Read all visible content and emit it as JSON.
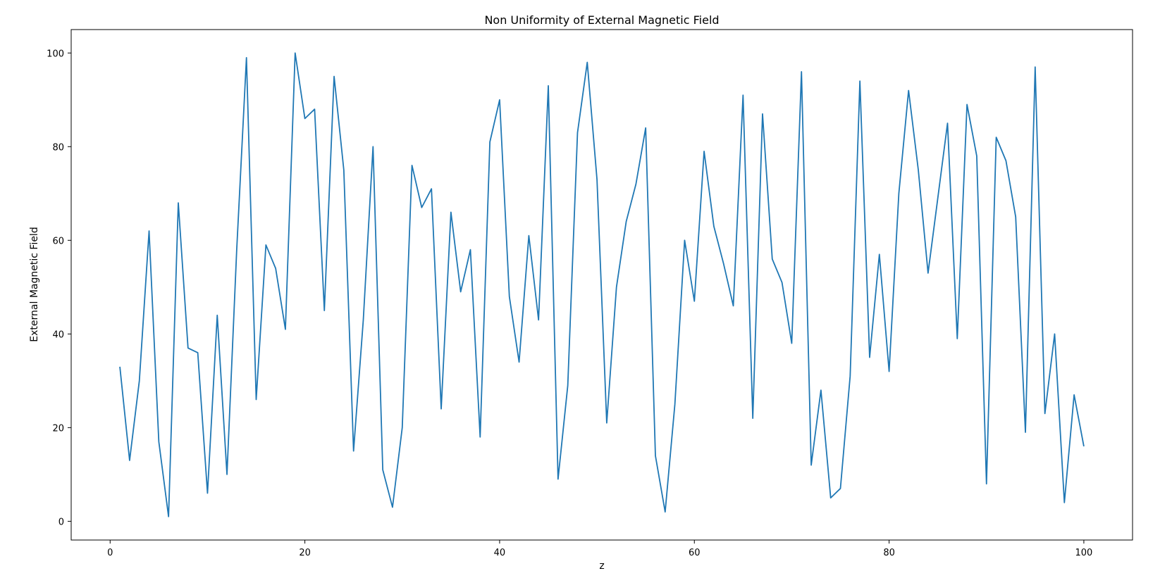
{
  "chart_data": {
    "type": "line",
    "title": "Non Uniformity of External Magnetic Field",
    "xlabel": "z",
    "ylabel": "External Magnetic Field",
    "xlim": [
      -4,
      105
    ],
    "ylim": [
      -4,
      105
    ],
    "xticks": [
      0,
      20,
      40,
      60,
      80,
      100
    ],
    "yticks": [
      0,
      20,
      40,
      60,
      80,
      100
    ],
    "grid": false,
    "series": [
      {
        "color": "#1f77b4",
        "x": [
          1,
          2,
          3,
          4,
          5,
          6,
          7,
          8,
          9,
          10,
          11,
          12,
          13,
          14,
          15,
          16,
          17,
          18,
          19,
          20,
          21,
          22,
          23,
          24,
          25,
          26,
          27,
          28,
          29,
          30,
          31,
          32,
          33,
          34,
          35,
          36,
          37,
          38,
          39,
          40,
          41,
          42,
          43,
          44,
          45,
          46,
          47,
          48,
          49,
          50,
          51,
          52,
          53,
          54,
          55,
          56,
          57,
          58,
          59,
          60,
          61,
          62,
          63,
          64,
          65,
          66,
          67,
          68,
          69,
          70,
          71,
          72,
          73,
          74,
          75,
          76,
          77,
          78,
          79,
          80,
          81,
          82,
          83,
          84,
          85,
          86,
          87,
          88,
          89,
          90,
          91,
          92,
          93,
          94,
          95,
          96,
          97,
          98,
          99,
          100
        ],
        "values": [
          33,
          13,
          30,
          62,
          17,
          1,
          68,
          37,
          36,
          6,
          44,
          10,
          58,
          99,
          26,
          59,
          54,
          41,
          100,
          86,
          88,
          45,
          95,
          75,
          15,
          43,
          80,
          11,
          3,
          20,
          76,
          67,
          71,
          24,
          66,
          49,
          58,
          18,
          81,
          90,
          48,
          34,
          61,
          43,
          93,
          9,
          29,
          83,
          98,
          73,
          21,
          50,
          64,
          72,
          84,
          14,
          2,
          25,
          60,
          47,
          79,
          63,
          55,
          46,
          91,
          22,
          87,
          56,
          51,
          38,
          96,
          12,
          28,
          5,
          7,
          31,
          94,
          35,
          57,
          32,
          70,
          92,
          75,
          53,
          69,
          85,
          39,
          89,
          78,
          8,
          82,
          77,
          65,
          19,
          97,
          23,
          40,
          4,
          27,
          16
        ]
      }
    ]
  }
}
